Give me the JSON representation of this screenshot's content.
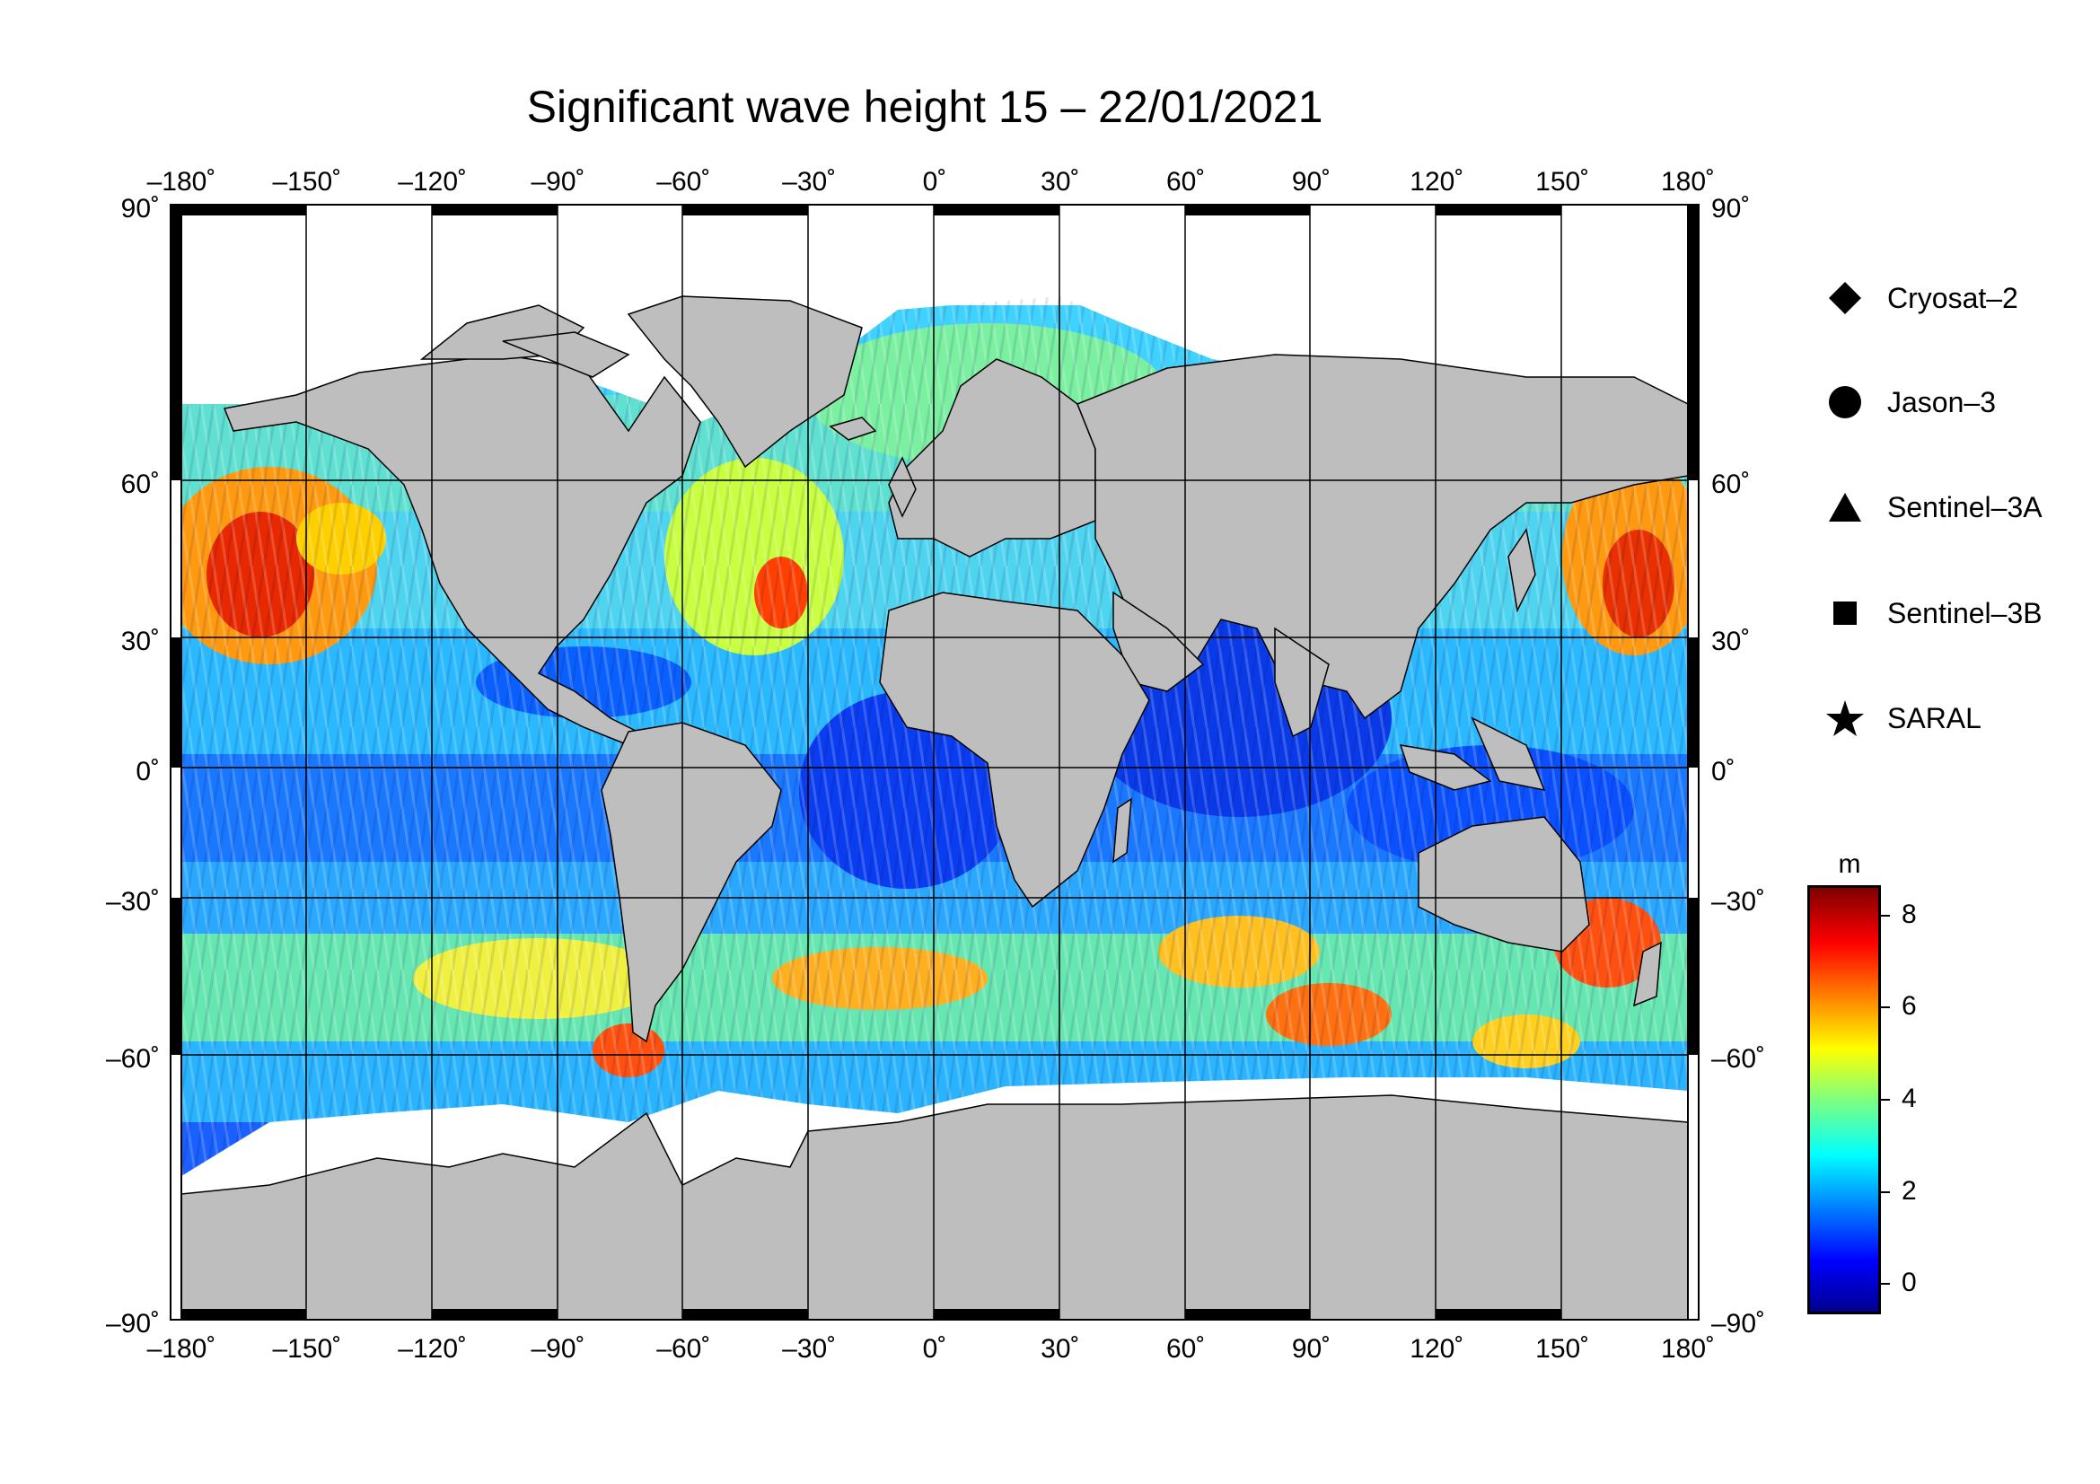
{
  "title": "Significant wave height 15 – 22/01/2021",
  "map": {
    "projection": "equirectangular",
    "lon_range": [
      -180,
      180
    ],
    "lat_range": [
      -90,
      90
    ],
    "lon_ticks": [
      "–180˚",
      "–150˚",
      "–120˚",
      "–90˚",
      "–60˚",
      "–30˚",
      "0˚",
      "30˚",
      "60˚",
      "90˚",
      "120˚",
      "150˚",
      "180˚"
    ],
    "lat_ticks_left": [
      "90˚",
      "60˚",
      "30˚",
      "0˚",
      "–30˚",
      "–60˚",
      "–90˚"
    ],
    "lat_ticks_right": [
      "90˚",
      "60˚",
      "30˚",
      "0˚",
      "–30˚",
      "–60˚",
      "–90˚"
    ],
    "land_color": "#bebebe",
    "ice_color": "#ffffff",
    "colorscale": "jet"
  },
  "legend": [
    {
      "label": "Cryosat–2",
      "symbol": "diamond-icon"
    },
    {
      "label": "Jason–3",
      "symbol": "circle-icon"
    },
    {
      "label": "Sentinel–3A",
      "symbol": "triangle-icon"
    },
    {
      "label": "Sentinel–3B",
      "symbol": "square-icon"
    },
    {
      "label": "SARAL",
      "symbol": "star-icon"
    }
  ],
  "colorbar": {
    "unit": "m",
    "min": -0.6,
    "max": 8.6,
    "tick_values": [
      0,
      2,
      4,
      6,
      8
    ],
    "ticks": [
      "0",
      "2",
      "4",
      "6",
      "8"
    ]
  }
}
